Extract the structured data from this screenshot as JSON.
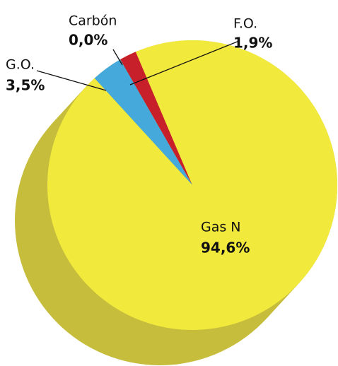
{
  "chart_data": {
    "type": "pie",
    "categories": [
      "Carbón",
      "F.O.",
      "G.O.",
      "Gas N"
    ],
    "values": [
      0,
      1.9,
      3.5,
      94.6
    ],
    "value_labels": [
      "0,0%",
      "1,9%",
      "3,5%",
      "94,6%"
    ],
    "colors": [
      "#222222",
      "#c8202a",
      "#45a9dc",
      "#f2e93d"
    ],
    "side_color": "#c6bd3c"
  }
}
